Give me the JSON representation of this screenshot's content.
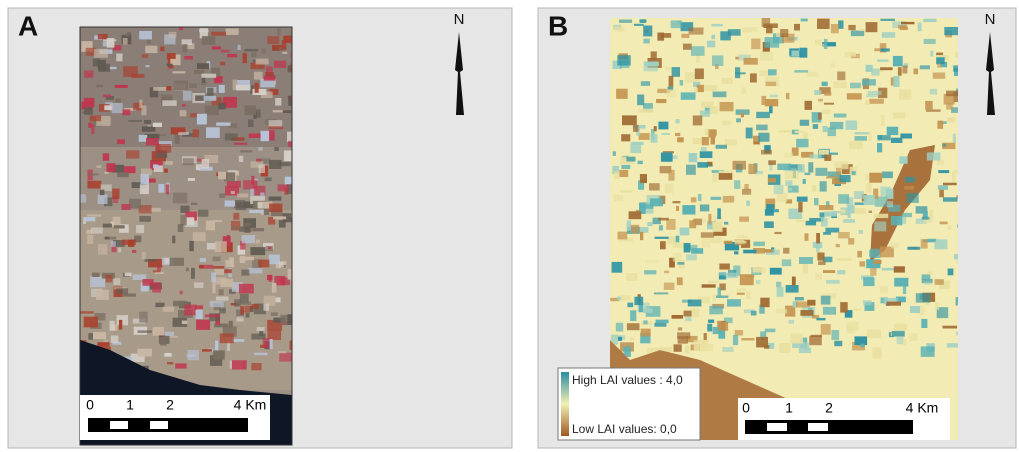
{
  "panels": [
    {
      "label": "A",
      "north": "N",
      "scale_bar": {
        "labels": [
          "0",
          "1",
          "2",
          "4 Km"
        ]
      }
    },
    {
      "label": "B",
      "north": "N",
      "scale_bar": {
        "labels": [
          "0",
          "1",
          "2",
          "4 Km"
        ]
      },
      "legend": {
        "high": "High LAI values : 4,0",
        "low": "Low LAI values: 0,0"
      }
    }
  ]
}
